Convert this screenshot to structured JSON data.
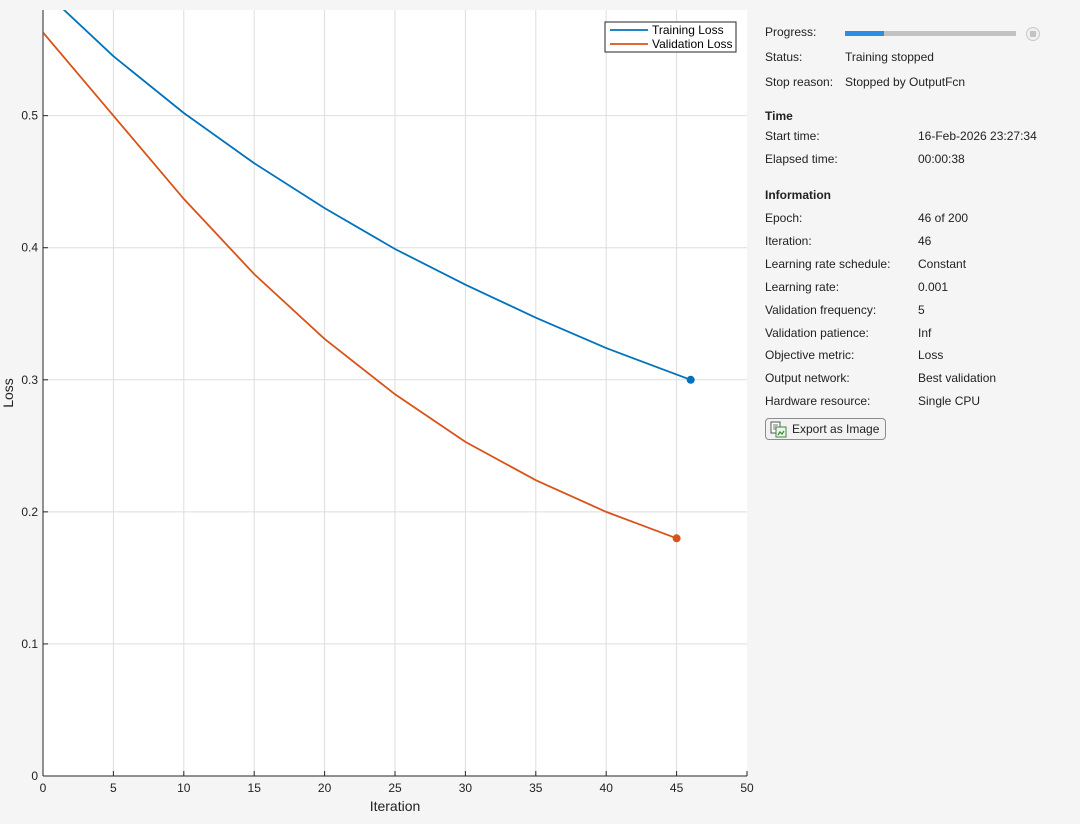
{
  "chart_data": {
    "type": "line",
    "xlabel": "Iteration",
    "ylabel": "Loss",
    "xlim": [
      0,
      50
    ],
    "ylim": [
      0,
      0.58
    ],
    "xticks": [
      0,
      5,
      10,
      15,
      20,
      25,
      30,
      35,
      40,
      45,
      50
    ],
    "xtick_labels": [
      "0",
      "5",
      "10",
      "15",
      "20",
      "25",
      "30",
      "35",
      "40",
      "45",
      "50"
    ],
    "yticks": [
      0,
      0.1,
      0.2,
      0.3,
      0.4,
      0.5
    ],
    "ytick_labels": [
      "0",
      "0.1",
      "0.2",
      "0.3",
      "0.4",
      "0.5"
    ],
    "grid": true,
    "legend_position": "top-right",
    "series": [
      {
        "name": "Training Loss",
        "color": "#0072bd",
        "x": [
          0,
          1,
          5,
          10,
          15,
          20,
          25,
          30,
          35,
          40,
          46
        ],
        "y": [
          0.595,
          0.585,
          0.545,
          0.502,
          0.464,
          0.43,
          0.399,
          0.372,
          0.347,
          0.324,
          0.3
        ],
        "end_marker": true
      },
      {
        "name": "Validation Loss",
        "color": "#d95319",
        "x": [
          0,
          5,
          10,
          15,
          20,
          25,
          30,
          35,
          40,
          45
        ],
        "y": [
          0.563,
          0.5,
          0.437,
          0.38,
          0.331,
          0.289,
          0.253,
          0.224,
          0.2,
          0.18
        ],
        "end_marker": true
      }
    ]
  },
  "info": {
    "progress_label": "Progress:",
    "progress_fraction": 0.23,
    "status_label": "Status:",
    "status_value": "Training stopped",
    "stop_reason_label": "Stop reason:",
    "stop_reason_value": "Stopped by OutputFcn",
    "time_header": "Time",
    "start_time_label": "Start time:",
    "start_time_value": "16-Feb-2026 23:27:34",
    "elapsed_time_label": "Elapsed time:",
    "elapsed_time_value": "00:00:38",
    "information_header": "Information",
    "rows": [
      {
        "label": "Epoch:",
        "value": "46 of 200"
      },
      {
        "label": "Iteration:",
        "value": "46"
      },
      {
        "label": "Learning rate schedule:",
        "value": "Constant"
      },
      {
        "label": "Learning rate:",
        "value": "0.001"
      },
      {
        "label": "Validation frequency:",
        "value": "5"
      },
      {
        "label": "Validation patience:",
        "value": "Inf"
      },
      {
        "label": "Objective metric:",
        "value": "Loss"
      },
      {
        "label": "Output network:",
        "value": "Best validation"
      },
      {
        "label": "Hardware resource:",
        "value": "Single CPU"
      }
    ],
    "export_label": "Export as Image"
  },
  "colors": {
    "progress_fill": "#2b8ee0",
    "training": "#0072bd",
    "validation": "#d95319"
  }
}
